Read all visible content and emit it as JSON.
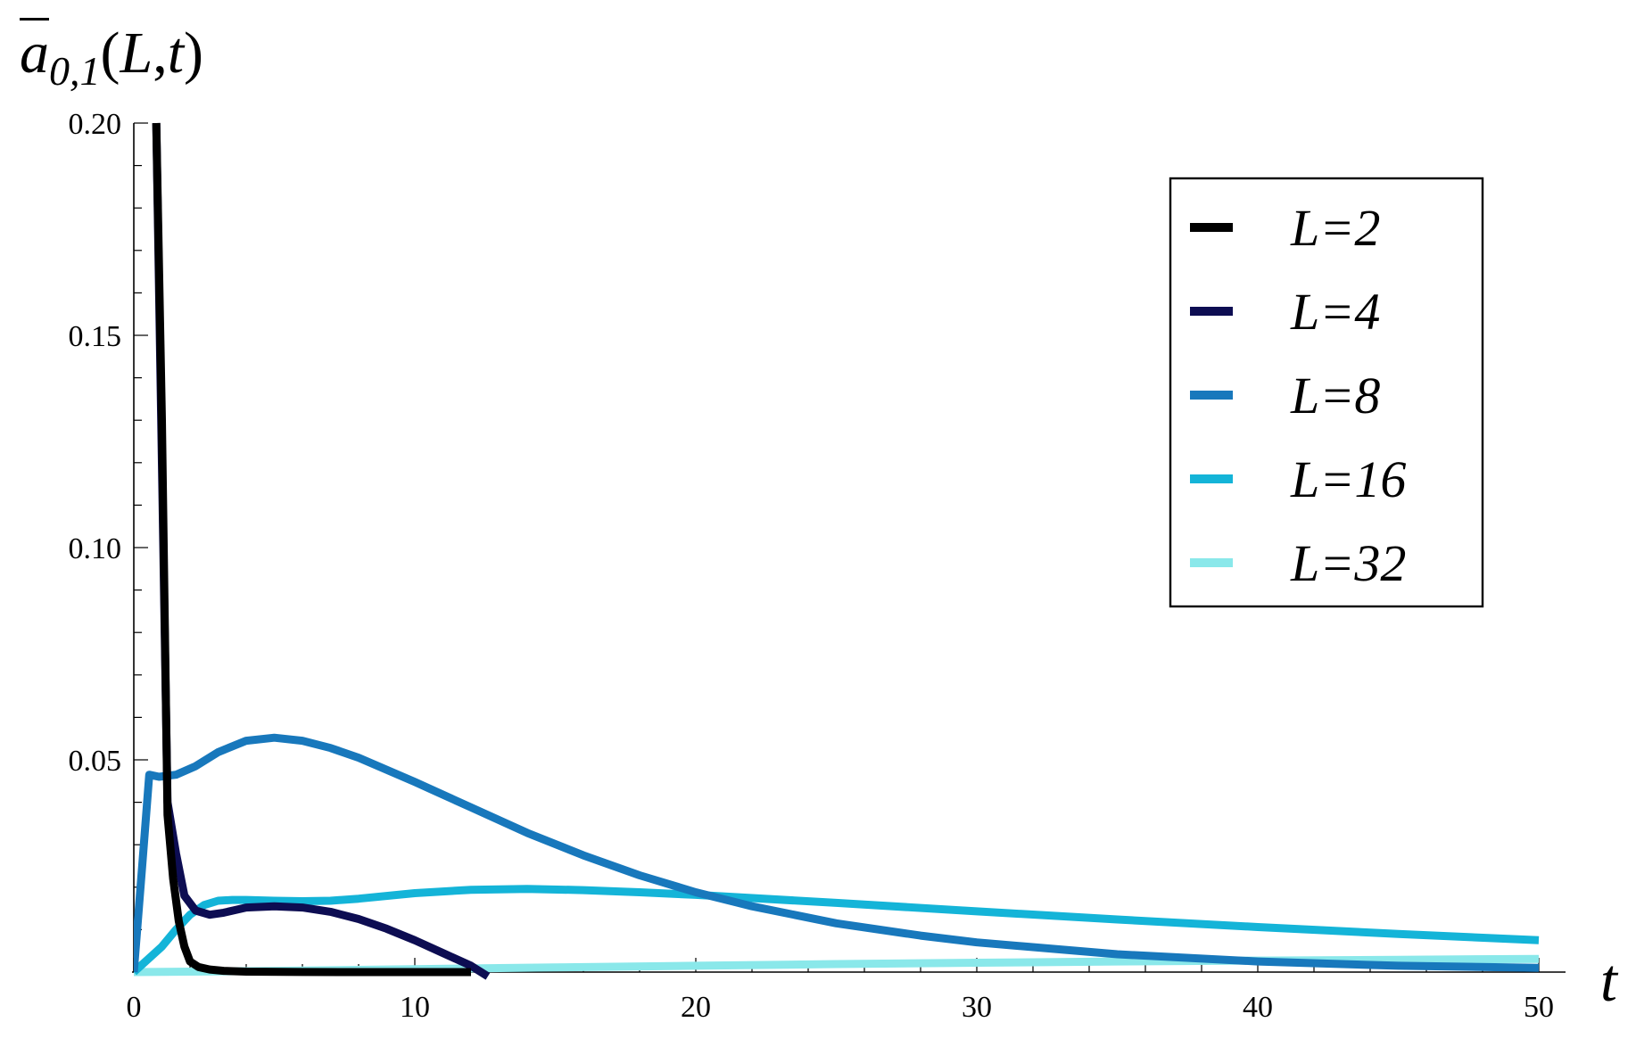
{
  "chart_data": {
    "type": "line",
    "title_parts": {
      "a": "a",
      "sub": "0,1",
      "open": "(",
      "L": "L",
      "comma": ",",
      "t": "t",
      "close": ")"
    },
    "xlabel": "t",
    "ylabel": "",
    "xlim": [
      0,
      50
    ],
    "ylim": [
      0,
      0.2
    ],
    "xticks": [
      0,
      10,
      20,
      30,
      40,
      50
    ],
    "xtick_labels": [
      "0",
      "10",
      "20",
      "30",
      "40",
      "50"
    ],
    "yticks": [
      0.05,
      0.1,
      0.15,
      0.2
    ],
    "ytick_labels": [
      "0.05",
      "0.10",
      "0.15",
      "0.20"
    ],
    "grid": false,
    "legend_position": "top-right",
    "series": [
      {
        "name": "L=2",
        "color": "#000000",
        "x": [
          0.8,
          1.0,
          1.2,
          1.4,
          1.6,
          1.8,
          2.0,
          2.3,
          2.7,
          3.2,
          4,
          6,
          8,
          10,
          12
        ],
        "y": [
          0.2,
          0.13,
          0.037,
          0.022,
          0.012,
          0.006,
          0.0025,
          0.0012,
          0.0006,
          0.0003,
          0.0001,
          3e-05,
          1e-05,
          0,
          0
        ]
      },
      {
        "name": "L=4",
        "color": "#0d0d52",
        "x": [
          0.8,
          1.0,
          1.2,
          1.5,
          1.8,
          2.2,
          2.7,
          3.2,
          4,
          5,
          6,
          7,
          8,
          9,
          10,
          11,
          12,
          12.6
        ],
        "y": [
          0.2,
          0.12,
          0.04,
          0.028,
          0.018,
          0.0145,
          0.0135,
          0.014,
          0.0152,
          0.0155,
          0.0152,
          0.0142,
          0.0125,
          0.0102,
          0.0075,
          0.0045,
          0.0015,
          -0.001
        ]
      },
      {
        "name": "L=8",
        "color": "#1878bc",
        "x": [
          0,
          0.3,
          0.55,
          0.9,
          1.5,
          2.2,
          3,
          4,
          5,
          6,
          7,
          8,
          10,
          12,
          14,
          16,
          18,
          20,
          22,
          25,
          28,
          30,
          35,
          40,
          45,
          50
        ],
        "y": [
          0,
          0.025,
          0.0465,
          0.046,
          0.0465,
          0.0485,
          0.0518,
          0.0545,
          0.0552,
          0.0545,
          0.0528,
          0.0505,
          0.0448,
          0.0388,
          0.0328,
          0.0275,
          0.0228,
          0.0188,
          0.0155,
          0.0115,
          0.0086,
          0.007,
          0.0042,
          0.0025,
          0.0015,
          0.001
        ]
      },
      {
        "name": "L=16",
        "color": "#14b4d8",
        "x": [
          0,
          0.5,
          1,
          1.5,
          2,
          2.5,
          3,
          3.5,
          4,
          5,
          6,
          7,
          8,
          10,
          12,
          14,
          16,
          18,
          20,
          25,
          30,
          35,
          40,
          45,
          50
        ],
        "y": [
          0,
          0.003,
          0.006,
          0.01,
          0.0135,
          0.0158,
          0.0168,
          0.017,
          0.017,
          0.0168,
          0.0167,
          0.0168,
          0.0173,
          0.0186,
          0.0194,
          0.0196,
          0.0193,
          0.0188,
          0.0182,
          0.0163,
          0.0143,
          0.0124,
          0.0106,
          0.009,
          0.0075
        ]
      },
      {
        "name": "L=32",
        "color": "#8ae8ea",
        "x": [
          0,
          2,
          5,
          10,
          15,
          20,
          25,
          30,
          35,
          40,
          45,
          50
        ],
        "y": [
          0,
          0.0001,
          0.0003,
          0.0007,
          0.0011,
          0.0015,
          0.0019,
          0.0022,
          0.0025,
          0.0027,
          0.0029,
          0.0031
        ]
      }
    ]
  }
}
